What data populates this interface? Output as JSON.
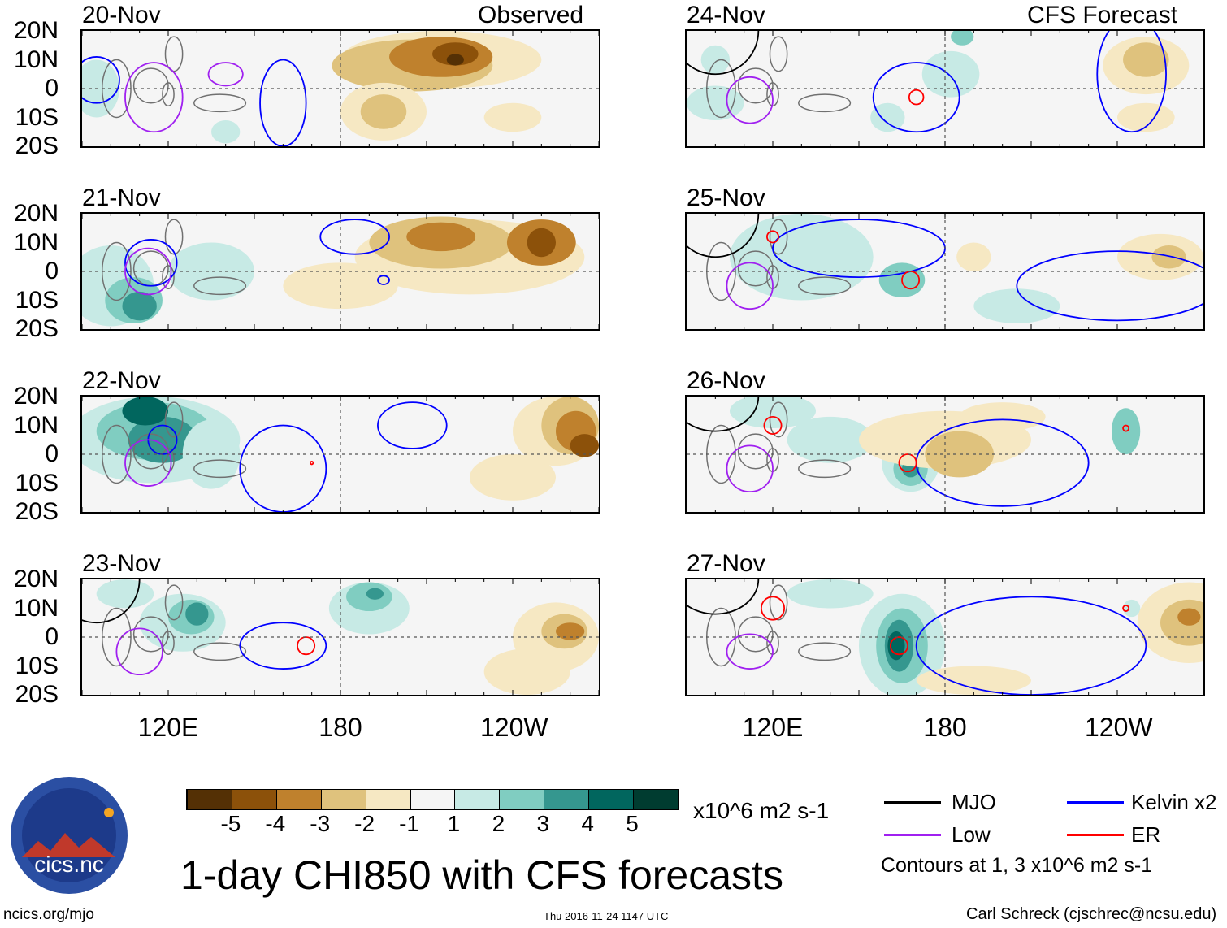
{
  "header": {
    "left_label": "Observed",
    "right_label": "CFS Forecast"
  },
  "lat_labels": [
    "20N",
    "10N",
    "0",
    "10S",
    "20S"
  ],
  "lon_labels": [
    "120E",
    "180",
    "120W"
  ],
  "colors": {
    "levels": {
      "-5": "#543005",
      "-4": "#8c510a",
      "-3": "#bf812d",
      "-2": "#dfc27d",
      "-1": "#f6e8c3",
      "0": "#f5f5f5",
      "1": "#c7eae5",
      "2": "#80cdc1",
      "3": "#35978f",
      "4": "#01665e",
      "5": "#003c30"
    },
    "mjo": "#000000",
    "kelvin": "#0000ff",
    "low": "#a020f0",
    "er": "#ff0000",
    "land": "#707070"
  },
  "chart_data": {
    "type": "map",
    "title": "1-day CHI850 with CFS forecasts",
    "lon_range_deg_east": [
      90,
      270
    ],
    "lat_range": [
      -20,
      20
    ],
    "panels": [
      {
        "date": "20-Nov",
        "source": "Observed",
        "fills": [
          [
            215,
            10,
            35,
            10,
            -1
          ],
          [
            205,
            8,
            28,
            9,
            -2
          ],
          [
            215,
            11,
            18,
            7,
            -3
          ],
          [
            220,
            12,
            8,
            4,
            -4
          ],
          [
            220,
            10,
            3,
            2,
            -5
          ],
          [
            195,
            -8,
            15,
            10,
            -1
          ],
          [
            195,
            -8,
            8,
            6,
            -2
          ],
          [
            240,
            -10,
            10,
            5,
            -1
          ],
          [
            95,
            0,
            8,
            10,
            1
          ],
          [
            140,
            -15,
            5,
            4,
            1
          ]
        ],
        "contours": [
          [
            "kelvin",
            95,
            3,
            8,
            8
          ],
          [
            "kelvin",
            160,
            -5,
            8,
            15
          ],
          [
            "low",
            115,
            -3,
            10,
            12
          ],
          [
            "low",
            140,
            5,
            6,
            4
          ]
        ]
      },
      {
        "date": "21-Nov",
        "source": "Observed",
        "fills": [
          [
            100,
            -5,
            15,
            14,
            1
          ],
          [
            108,
            -10,
            10,
            8,
            2
          ],
          [
            110,
            -12,
            6,
            5,
            3
          ],
          [
            135,
            0,
            15,
            10,
            1
          ],
          [
            180,
            -5,
            20,
            8,
            -1
          ],
          [
            225,
            5,
            40,
            13,
            -1
          ],
          [
            215,
            10,
            25,
            9,
            -2
          ],
          [
            215,
            12,
            12,
            5,
            -3
          ],
          [
            250,
            10,
            12,
            8,
            -3
          ],
          [
            250,
            10,
            5,
            5,
            -4
          ]
        ],
        "contours": [
          [
            "kelvin",
            114,
            3,
            9,
            8
          ],
          [
            "kelvin",
            185,
            12,
            12,
            6
          ],
          [
            "kelvin",
            195,
            -3,
            2,
            1.5
          ],
          [
            "low",
            113,
            0,
            8,
            8
          ]
        ]
      },
      {
        "date": "22-Nov",
        "source": "Observed",
        "fills": [
          [
            115,
            5,
            30,
            15,
            1
          ],
          [
            115,
            8,
            20,
            10,
            2
          ],
          [
            118,
            5,
            12,
            8,
            3
          ],
          [
            112,
            15,
            8,
            5,
            4
          ],
          [
            135,
            0,
            10,
            12,
            1
          ],
          [
            240,
            -8,
            15,
            8,
            -1
          ],
          [
            255,
            8,
            15,
            12,
            -1
          ],
          [
            260,
            10,
            10,
            10,
            -2
          ],
          [
            262,
            8,
            7,
            7,
            -3
          ],
          [
            265,
            3,
            5,
            4,
            -4
          ]
        ],
        "contours": [
          [
            "kelvin",
            160,
            -5,
            15,
            15
          ],
          [
            "kelvin",
            118,
            5,
            5,
            5
          ],
          [
            "kelvin",
            205,
            10,
            12,
            8
          ],
          [
            "low",
            113,
            -3,
            8,
            8
          ],
          [
            "er",
            170,
            -3,
            0.5,
            0.5
          ]
        ]
      },
      {
        "date": "23-Nov",
        "source": "Observed",
        "fills": [
          [
            105,
            15,
            10,
            5,
            1
          ],
          [
            125,
            5,
            15,
            10,
            1
          ],
          [
            128,
            7,
            8,
            6,
            2
          ],
          [
            130,
            8,
            4,
            4,
            3
          ],
          [
            190,
            10,
            14,
            9,
            1
          ],
          [
            190,
            14,
            8,
            5,
            2
          ],
          [
            192,
            15,
            3,
            2,
            3
          ],
          [
            245,
            -12,
            15,
            8,
            -1
          ],
          [
            255,
            0,
            15,
            12,
            -1
          ],
          [
            258,
            2,
            8,
            6,
            -2
          ],
          [
            260,
            2,
            5,
            3,
            -3
          ]
        ],
        "contours": [
          [
            "mjo",
            95,
            20,
            15,
            15
          ],
          [
            "kelvin",
            160,
            -3,
            15,
            8
          ],
          [
            "low",
            110,
            -5,
            8,
            8
          ],
          [
            "er",
            168,
            -3,
            3,
            3
          ]
        ]
      },
      {
        "date": "24-Nov",
        "source": "CFS Forecast",
        "fills": [
          [
            100,
            -5,
            10,
            6,
            1
          ],
          [
            100,
            10,
            5,
            5,
            1
          ],
          [
            160,
            -10,
            6,
            5,
            1
          ],
          [
            182,
            5,
            10,
            8,
            1
          ],
          [
            186,
            18,
            4,
            3,
            2
          ],
          [
            250,
            8,
            15,
            10,
            -1
          ],
          [
            250,
            10,
            8,
            6,
            -2
          ],
          [
            250,
            -10,
            10,
            5,
            -1
          ]
        ],
        "contours": [
          [
            "mjo",
            100,
            20,
            15,
            15
          ],
          [
            "kelvin",
            170,
            -3,
            15,
            12
          ],
          [
            "kelvin",
            245,
            5,
            12,
            20
          ],
          [
            "low",
            112,
            -4,
            8,
            8
          ],
          [
            "er",
            170,
            -3,
            2.5,
            2.5
          ]
        ]
      },
      {
        "date": "25-Nov",
        "source": "CFS Forecast",
        "fills": [
          [
            130,
            5,
            25,
            15,
            1
          ],
          [
            165,
            -3,
            8,
            6,
            2
          ],
          [
            190,
            5,
            6,
            5,
            -1
          ],
          [
            205,
            -12,
            15,
            6,
            1
          ],
          [
            255,
            5,
            15,
            8,
            -1
          ],
          [
            258,
            5,
            6,
            4,
            -2
          ]
        ],
        "contours": [
          [
            "mjo",
            100,
            20,
            15,
            15
          ],
          [
            "kelvin",
            150,
            8,
            30,
            10
          ],
          [
            "kelvin",
            240,
            -5,
            35,
            12
          ],
          [
            "low",
            112,
            -5,
            8,
            8
          ],
          [
            "er",
            168,
            -3,
            3,
            3
          ],
          [
            "er",
            120,
            12,
            2,
            2
          ]
        ]
      },
      {
        "date": "26-Nov",
        "source": "CFS Forecast",
        "fills": [
          [
            120,
            15,
            15,
            6,
            1
          ],
          [
            140,
            5,
            15,
            8,
            1
          ],
          [
            168,
            -3,
            10,
            10,
            1
          ],
          [
            168,
            -5,
            6,
            6,
            2
          ],
          [
            168,
            -5,
            3,
            3,
            3
          ],
          [
            180,
            5,
            30,
            10,
            -1
          ],
          [
            185,
            0,
            12,
            8,
            -2
          ],
          [
            200,
            13,
            15,
            5,
            -1
          ],
          [
            243,
            8,
            5,
            8,
            2
          ]
        ],
        "contours": [
          [
            "mjo",
            100,
            20,
            15,
            12
          ],
          [
            "kelvin",
            200,
            -3,
            30,
            15
          ],
          [
            "low",
            112,
            -5,
            8,
            8
          ],
          [
            "er",
            167,
            -3,
            3,
            3
          ],
          [
            "er",
            120,
            10,
            3,
            3
          ],
          [
            "er",
            243,
            9,
            1,
            1
          ]
        ]
      },
      {
        "date": "27-Nov",
        "source": "CFS Forecast",
        "fills": [
          [
            140,
            15,
            15,
            5,
            1
          ],
          [
            165,
            -3,
            15,
            18,
            1
          ],
          [
            165,
            -3,
            9,
            13,
            2
          ],
          [
            164,
            -3,
            5,
            9,
            3
          ],
          [
            163,
            -3,
            3,
            5,
            4
          ],
          [
            190,
            -15,
            20,
            5,
            -1
          ],
          [
            245,
            10,
            3,
            3,
            1
          ],
          [
            265,
            5,
            18,
            14,
            -1
          ],
          [
            265,
            5,
            10,
            8,
            -2
          ],
          [
            265,
            7,
            4,
            3,
            -3
          ]
        ],
        "contours": [
          [
            "mjo",
            100,
            20,
            15,
            12
          ],
          [
            "kelvin",
            210,
            -3,
            40,
            17
          ],
          [
            "low",
            112,
            -5,
            8,
            6
          ],
          [
            "er",
            164,
            -3,
            3,
            3
          ],
          [
            "er",
            120,
            10,
            4,
            4
          ],
          [
            "er",
            243,
            10,
            1,
            1
          ]
        ]
      }
    ]
  },
  "colorbar": {
    "ticks": [
      "-5",
      "-4",
      "-3",
      "-2",
      "-1",
      "1",
      "2",
      "3",
      "4",
      "5"
    ],
    "levels": [
      -5,
      -4,
      -3,
      -2,
      -1,
      0,
      1,
      2,
      3,
      4,
      5
    ],
    "units": "x10^6 m2 s-1"
  },
  "legend": {
    "mjo": "MJO",
    "kelvin": "Kelvin x2",
    "low": "Low",
    "er": "ER",
    "note": "Contours at 1, 3 x10^6 m2 s-1"
  },
  "footer": {
    "title": "1-day CHI850 with CFS forecasts",
    "site": "ncics.org/mjo",
    "timestamp": "Thu 2016-11-24 1147 UTC",
    "author": "Carl Schreck (cjschrec@ncsu.edu)"
  },
  "logo": {
    "text": "cics.nc",
    "ring_text": "Cooperative Institute for Climate and Satellites"
  }
}
